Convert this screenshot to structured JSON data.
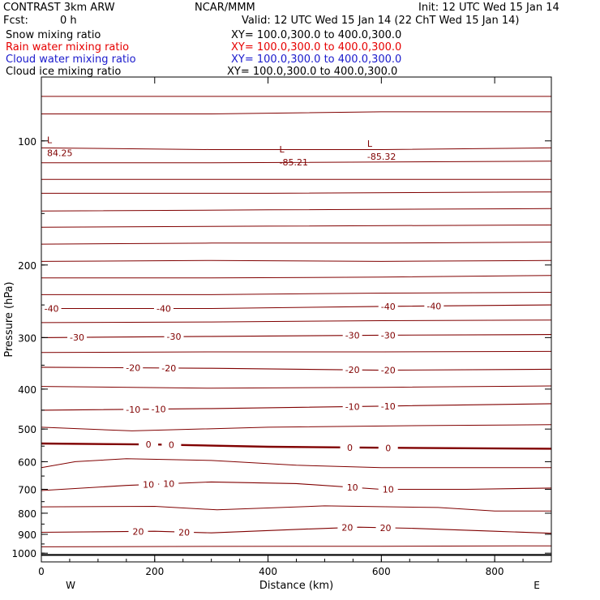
{
  "header": {
    "model": "CONTRAST  3km ARW",
    "org": "NCAR/MMM",
    "init": "Init: 12 UTC Wed 15 Jan 14",
    "fcst_label": "Fcst:",
    "fcst_value": "0 h",
    "valid": "Valid: 12 UTC Wed 15 Jan 14 (22 ChT Wed 15 Jan 14)"
  },
  "fields": [
    {
      "name": "Snow mixing ratio",
      "xy": "XY= 100.0,300.0 to 400.0,300.0",
      "color": "#000000"
    },
    {
      "name": "Rain water mixing ratio",
      "xy": "XY= 100.0,300.0 to 400.0,300.0",
      "color": "#e60000"
    },
    {
      "name": "Cloud water mixing ratio",
      "xy": "XY= 100.0,300.0 to 400.0,300.0",
      "color": "#1a1acc"
    },
    {
      "name": "Cloud ice mixing ratio",
      "xy": "XY= 100.0,300.0 to 400.0,300.0",
      "color": "#000000"
    }
  ],
  "chart_data": {
    "type": "line",
    "xlabel": "Distance (km)",
    "ylabel": "Pressure (hPa)",
    "xlim": [
      0,
      900
    ],
    "ylim": [
      1050,
      70
    ],
    "y_scale": "log",
    "xticks": [
      "0",
      "200",
      "400",
      "600",
      "800"
    ],
    "xtick_values": [
      0,
      200,
      400,
      600,
      800
    ],
    "yticks": [
      "100",
      "200",
      "300",
      "400",
      "500",
      "600",
      "700",
      "800",
      "900",
      "1000"
    ],
    "ytick_values": [
      100,
      200,
      300,
      400,
      500,
      600,
      700,
      800,
      900,
      1000
    ],
    "west_label": "W",
    "east_label": "E",
    "contour_color": "#800000",
    "surface_pressure": 1010,
    "isotherms": [
      {
        "level": -40,
        "labels": [
          "-40",
          "-40",
          "-40",
          "-40"
        ],
        "points": [
          [
            0,
            255
          ],
          [
            300,
            255
          ],
          [
            600,
            252
          ],
          [
            900,
            250
          ]
        ]
      },
      {
        "level": -30,
        "labels": [
          "-30",
          "-30",
          "-30",
          "-30"
        ],
        "points": [
          [
            0,
            300
          ],
          [
            300,
            298
          ],
          [
            600,
            296
          ],
          [
            900,
            295
          ]
        ]
      },
      {
        "level": -20,
        "labels": [
          "-20",
          "-20",
          "-20",
          "-20"
        ],
        "points": [
          [
            0,
            354
          ],
          [
            300,
            356
          ],
          [
            600,
            360
          ],
          [
            900,
            358
          ]
        ]
      },
      {
        "level": -10,
        "labels": [
          "-10",
          "-10",
          "-10",
          "-10"
        ],
        "points": [
          [
            0,
            450
          ],
          [
            300,
            446
          ],
          [
            600,
            440
          ],
          [
            900,
            434
          ]
        ]
      },
      {
        "level": 0,
        "labels": [
          "0",
          "0",
          "0",
          "0"
        ],
        "points": [
          [
            0,
            542
          ],
          [
            200,
            545
          ],
          [
            400,
            552
          ],
          [
            600,
            555
          ],
          [
            900,
            558
          ]
        ]
      },
      {
        "level": 10,
        "labels": [
          "10",
          "10",
          "10",
          "10"
        ],
        "points": [
          [
            0,
            705
          ],
          [
            150,
            685
          ],
          [
            300,
            672
          ],
          [
            450,
            678
          ],
          [
            600,
            700
          ],
          [
            750,
            700
          ],
          [
            900,
            695
          ]
        ]
      },
      {
        "level": 20,
        "labels": [
          "20",
          "20",
          "20",
          "20"
        ],
        "points": [
          [
            0,
            890
          ],
          [
            200,
            885
          ],
          [
            300,
            893
          ],
          [
            460,
            875
          ],
          [
            560,
            865
          ],
          [
            650,
            870
          ],
          [
            800,
            885
          ],
          [
            900,
            895
          ]
        ]
      }
    ],
    "lows": [
      {
        "label": "L",
        "value": "84.25",
        "x": 10,
        "p": 95
      },
      {
        "label": "L",
        "value": "-85.21",
        "x": 420,
        "p": 100
      },
      {
        "label": "L",
        "value": "-85.32",
        "x": 575,
        "p": 97
      }
    ]
  }
}
